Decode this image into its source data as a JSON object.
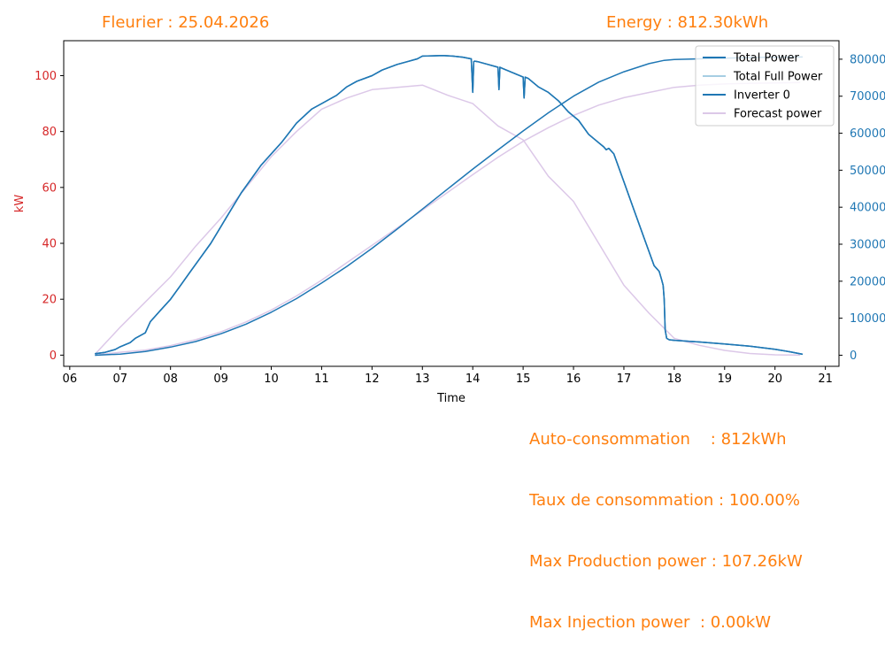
{
  "header": {
    "left_title": "Fleurier : 25.04.2026",
    "right_title": "Energy : 812.30kWh"
  },
  "stats": [
    "Auto-consommation    : 812kWh",
    "Taux de consommation : 100.00%",
    "Max Production power : 107.26kW",
    "Max Injection power  : 0.00kW"
  ],
  "chart_data": {
    "type": "line",
    "xlabel": "Time",
    "ylabel_left": "kW",
    "ylabel_right": "",
    "x_ticks": [
      "06",
      "07",
      "08",
      "09",
      "10",
      "11",
      "12",
      "13",
      "14",
      "15",
      "16",
      "17",
      "18",
      "19",
      "20",
      "21"
    ],
    "xlim": [
      5.88,
      21.27
    ],
    "ylim_left": [
      -4,
      112.5
    ],
    "ylim_right": [
      -3000,
      85000
    ],
    "y_ticks_left": [
      0,
      20,
      40,
      60,
      80,
      100
    ],
    "y_ticks_right": [
      0,
      10000,
      20000,
      30000,
      40000,
      50000,
      60000,
      70000,
      80000
    ],
    "grid": false,
    "legend_position": "top-right",
    "colors": {
      "left_axis": "#d62728",
      "right_axis": "#1f77b4",
      "total_power": "#1f77b4",
      "total_full_power": "#a6cee3",
      "inverter": "#1f77b4",
      "forecast": "#dcc8e8",
      "energy_curve": "#1f77b4",
      "forecast_energy": "#dcc8e8",
      "text_orange": "#ff7f0e"
    },
    "legend": [
      "Total Power",
      "Total Full Power",
      "Inverter 0",
      "Forecast power"
    ],
    "series": [
      {
        "name": "Inverter 0",
        "axis": "left",
        "x": [
          6.5,
          6.7,
          6.9,
          7.0,
          7.2,
          7.3,
          7.5,
          7.6,
          7.8,
          8.0,
          8.2,
          8.4,
          8.6,
          8.8,
          9.0,
          9.2,
          9.4,
          9.6,
          9.8,
          10.0,
          10.2,
          10.5,
          10.8,
          11.0,
          11.3,
          11.5,
          11.7,
          12.0,
          12.2,
          12.5,
          12.7,
          12.9,
          13.0,
          13.2,
          13.4,
          13.6,
          13.8,
          13.97,
          14.0,
          14.02,
          14.04,
          14.1,
          14.3,
          14.5,
          14.52,
          14.54,
          14.56,
          14.6,
          14.8,
          15.0,
          15.02,
          15.04,
          15.06,
          15.1,
          15.3,
          15.5,
          15.7,
          15.9,
          16.1,
          16.3,
          16.5,
          16.6,
          16.65,
          16.7,
          16.8,
          17.0,
          17.2,
          17.4,
          17.6,
          17.7,
          17.75,
          17.78,
          17.8,
          17.82,
          17.85,
          17.9,
          18.0,
          18.5,
          19.0,
          19.5,
          20.0,
          20.3,
          20.55
        ],
        "y": [
          0.5,
          1,
          2,
          3,
          4.5,
          6,
          8,
          12,
          16,
          20,
          25,
          30,
          35,
          40,
          46,
          52,
          58,
          63,
          68,
          72,
          76,
          83,
          88,
          90,
          93,
          96,
          98,
          100,
          102,
          104,
          105,
          106,
          107,
          107.1,
          107.2,
          107,
          106.6,
          106,
          94,
          105,
          105.2,
          105,
          104,
          103,
          95,
          103,
          102.8,
          102.5,
          101,
          99.5,
          92,
          99.5,
          99.3,
          99,
          96,
          94,
          91,
          87,
          84,
          79,
          76,
          74.5,
          73.5,
          74,
          72,
          62,
          52,
          42,
          32,
          30,
          27,
          25,
          20,
          9,
          6,
          5.5,
          5.3,
          4.7,
          4,
          3.2,
          2.1,
          1.2,
          0.3
        ]
      },
      {
        "name": "Total Power",
        "axis": "left",
        "x": [
          6.5,
          6.7,
          6.9,
          7.0,
          7.2,
          7.3,
          7.5,
          7.6,
          7.8,
          8.0,
          8.2,
          8.4,
          8.6,
          8.8,
          9.0,
          9.2,
          9.4,
          9.6,
          9.8,
          10.0,
          10.2,
          10.5,
          10.8,
          11.0,
          11.3,
          11.5,
          11.7,
          12.0,
          12.2,
          12.5,
          12.7,
          12.9,
          13.0,
          13.2,
          13.4,
          13.6,
          13.8,
          13.97,
          14.0,
          14.02,
          14.04,
          14.1,
          14.3,
          14.5,
          14.52,
          14.54,
          14.56,
          14.6,
          14.8,
          15.0,
          15.02,
          15.04,
          15.06,
          15.1,
          15.3,
          15.5,
          15.7,
          15.9,
          16.1,
          16.3,
          16.5,
          16.6,
          16.65,
          16.7,
          16.8,
          17.0,
          17.2,
          17.4,
          17.6,
          17.7,
          17.75,
          17.78,
          17.8,
          17.82,
          17.85,
          17.9,
          18.0,
          18.5,
          19.0,
          19.5,
          20.0,
          20.3,
          20.55
        ],
        "y": [
          0.5,
          1,
          2,
          3,
          4.5,
          6,
          8,
          12,
          16,
          20,
          25,
          30,
          35,
          40,
          46,
          52,
          58,
          63,
          68,
          72,
          76,
          83,
          88,
          90,
          93,
          96,
          98,
          100,
          102,
          104,
          105,
          106,
          107,
          107.1,
          107.2,
          107,
          106.6,
          106,
          94,
          105,
          105.2,
          105,
          104,
          103,
          95,
          103,
          102.8,
          102.5,
          101,
          99.5,
          92,
          99.5,
          99.3,
          99,
          96,
          94,
          91,
          87,
          84,
          79,
          76,
          74.5,
          73.5,
          74,
          72,
          62,
          52,
          42,
          32,
          30,
          27,
          25,
          20,
          9,
          6,
          5.5,
          5.3,
          4.7,
          4,
          3.2,
          2.1,
          1.2,
          0.3
        ]
      },
      {
        "name": "Total Full Power",
        "axis": "left",
        "x": [
          6.5,
          6.7,
          6.9,
          7.0,
          7.2,
          7.3,
          7.5,
          7.6,
          7.8,
          8.0,
          8.2,
          8.4,
          8.6,
          8.8,
          9.0,
          9.2,
          9.4,
          9.6,
          9.8,
          10.0,
          10.2,
          10.5,
          10.8,
          11.0,
          11.3,
          11.5,
          11.7,
          12.0,
          12.2,
          12.5,
          12.7,
          12.9,
          13.0,
          13.2,
          13.4,
          13.6,
          13.8,
          13.97,
          14.0,
          14.02,
          14.04,
          14.1,
          14.3,
          14.5,
          14.52,
          14.54,
          14.56,
          14.6,
          14.8,
          15.0,
          15.02,
          15.04,
          15.06,
          15.1,
          15.3,
          15.5,
          15.7,
          15.9,
          16.1,
          16.3,
          16.5,
          16.6,
          16.65,
          16.7,
          16.8,
          17.0,
          17.2,
          17.4,
          17.6,
          17.7,
          17.75,
          17.78,
          17.8,
          17.82,
          17.85,
          17.9,
          18.0,
          18.5,
          19.0,
          19.5,
          20.0,
          20.3,
          20.55
        ],
        "y": [
          0.5,
          1,
          2,
          3,
          4.5,
          6,
          8,
          12,
          16,
          20,
          25,
          30,
          35,
          40,
          46,
          52,
          58,
          63,
          68,
          72,
          76,
          83,
          88,
          90,
          93,
          96,
          98,
          100,
          102,
          104,
          105,
          106,
          107,
          107.1,
          107.2,
          107,
          106.6,
          106,
          94,
          105,
          105.2,
          105,
          104,
          103,
          95,
          103,
          102.8,
          102.5,
          101,
          99.5,
          92,
          99.5,
          99.3,
          99,
          96,
          94,
          91,
          87,
          84,
          79,
          76,
          74.5,
          73.5,
          74,
          72,
          62,
          52,
          42,
          32,
          30,
          27,
          25,
          20,
          9,
          6,
          5.5,
          5.3,
          4.7,
          4,
          3.2,
          2.1,
          1.2,
          0.3
        ]
      },
      {
        "name": "Forecast power",
        "axis": "left",
        "x": [
          6.5,
          7.0,
          7.5,
          8.0,
          8.5,
          9.0,
          9.5,
          10.0,
          10.5,
          11.0,
          11.5,
          12.0,
          12.5,
          13.0,
          13.5,
          14.0,
          14.5,
          15.0,
          15.5,
          16.0,
          16.5,
          17.0,
          17.5,
          18.0,
          18.5,
          19.0,
          19.5,
          20.0,
          20.5
        ],
        "y": [
          0.3,
          10,
          19,
          28,
          39,
          49,
          60,
          71,
          80,
          88,
          92,
          95,
          95.8,
          96.6,
          93,
          90,
          82,
          77,
          64,
          55,
          40,
          25,
          15,
          6,
          3.5,
          1.7,
          0.6,
          0.1,
          0
        ]
      },
      {
        "axis": "right",
        "x": [
          6.5,
          7.0,
          7.5,
          8.0,
          8.5,
          9.0,
          9.5,
          10.0,
          10.5,
          11.0,
          11.5,
          12.0,
          12.5,
          13.0,
          13.5,
          14.0,
          14.5,
          15.0,
          15.5,
          16.0,
          16.5,
          17.0,
          17.5,
          17.8,
          18.0,
          18.5,
          19.0,
          19.5,
          20.0,
          20.55
        ],
        "y": [
          0,
          300,
          1000,
          2200,
          3700,
          5800,
          8400,
          11600,
          15300,
          19500,
          24000,
          28900,
          34100,
          39500,
          44900,
          50300,
          55500,
          60600,
          65500,
          70000,
          73800,
          76600,
          78800,
          79700,
          79900,
          80100,
          80300,
          80450,
          80550,
          80600
        ]
      },
      {
        "axis": "right",
        "x": [
          6.5,
          7.0,
          7.5,
          8.0,
          8.5,
          9.0,
          9.5,
          10.0,
          10.5,
          11.0,
          11.5,
          12.0,
          12.5,
          13.0,
          13.5,
          14.0,
          14.5,
          15.0,
          15.5,
          16.0,
          16.5,
          17.0,
          17.5,
          18.0,
          18.5,
          19.0,
          19.5,
          20.0,
          20.5
        ],
        "y": [
          0,
          800,
          1400,
          2600,
          4200,
          6300,
          9000,
          12200,
          16000,
          20300,
          25000,
          29700,
          34400,
          39200,
          44000,
          48800,
          53500,
          57800,
          61500,
          64800,
          67600,
          69600,
          71000,
          72400,
          73000,
          73300,
          73500,
          73600,
          73700
        ]
      }
    ]
  }
}
